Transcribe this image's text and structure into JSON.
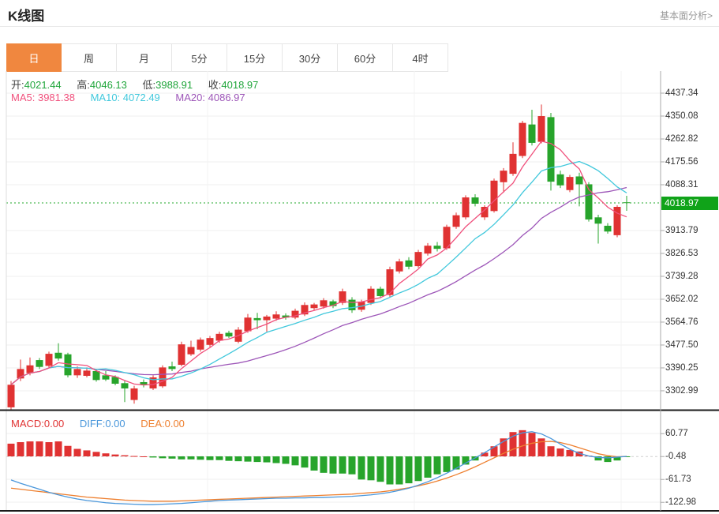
{
  "header": {
    "title": "K线图",
    "link": "基本面分析>"
  },
  "tabs": {
    "items": [
      {
        "label": "日",
        "active": true
      },
      {
        "label": "周",
        "active": false
      },
      {
        "label": "月",
        "active": false
      },
      {
        "label": "5分",
        "active": false
      },
      {
        "label": "15分",
        "active": false
      },
      {
        "label": "30分",
        "active": false
      },
      {
        "label": "60分",
        "active": false
      },
      {
        "label": "4时",
        "active": false
      }
    ]
  },
  "main_chart": {
    "legend": {
      "open_label": "开:",
      "open": "4021.44",
      "high_label": "高:",
      "high": "4046.13",
      "low_label": "低:",
      "low": "3988.91",
      "close_label": "收:",
      "close": "4018.97"
    },
    "ma_legend": {
      "ma5_label": "MA5:",
      "ma5": "3981.38",
      "ma10_label": "MA10:",
      "ma10": "4072.49",
      "ma20_label": "MA20:",
      "ma20": "4086.97"
    },
    "current_price": "4018.97"
  },
  "macd_pane": {
    "legend": {
      "macd_label": "MACD:",
      "macd": "0.00",
      "diff_label": "DIFF:",
      "diff": "0.00",
      "dea_label": "DEA:",
      "dea": "0.00"
    }
  },
  "colors": {
    "up": "#e03232",
    "down": "#27a42b",
    "ma5": "#f0507c",
    "ma10": "#41c8dc",
    "ma20": "#9d56b8",
    "diff": "#4a97db",
    "dea": "#ee8030",
    "tab_accent": "#f0873f",
    "price_tag_bg": "#10a319",
    "value_green": "#21a63c",
    "grid": "#efefef",
    "axis": "#aaaaaa",
    "dark_border": "#1a1a1a",
    "dotted_price": "#22a82b"
  },
  "chart_data": [
    {
      "type": "candlestick",
      "title": "K线图",
      "interval": "日",
      "legend_values": {
        "open": 4021.44,
        "high": 4046.13,
        "low": 3988.91,
        "close": 4018.97,
        "MA5": 3981.38,
        "MA10": 4072.49,
        "MA20": 4086.97
      },
      "current_price": 4018.97,
      "y_ticks": [
        4437.34,
        4350.08,
        4262.82,
        4175.56,
        4088.31,
        3913.79,
        3826.53,
        3739.28,
        3652.02,
        3564.76,
        3477.5,
        3390.25,
        3302.99
      ],
      "ylim": [
        3230,
        4525
      ],
      "grid": true,
      "series_note": "ohlc = [open,high,low,close]; red=up green=down; MA5/MA10/MA20 overlays computed as rolling mean of closes",
      "ohlc": [
        [
          3240,
          3340,
          3232,
          3326
        ],
        [
          3350,
          3422,
          3340,
          3386
        ],
        [
          3370,
          3430,
          3362,
          3400
        ],
        [
          3420,
          3428,
          3386,
          3394
        ],
        [
          3398,
          3452,
          3390,
          3444
        ],
        [
          3448,
          3484,
          3418,
          3426
        ],
        [
          3442,
          3448,
          3354,
          3362
        ],
        [
          3362,
          3396,
          3352,
          3386
        ],
        [
          3360,
          3392,
          3354,
          3380
        ],
        [
          3378,
          3386,
          3338,
          3344
        ],
        [
          3362,
          3378,
          3340,
          3346
        ],
        [
          3356,
          3362,
          3324,
          3330
        ],
        [
          3332,
          3340,
          3260,
          3312
        ],
        [
          3268,
          3322,
          3254,
          3312
        ],
        [
          3336,
          3346,
          3316,
          3326
        ],
        [
          3312,
          3362,
          3306,
          3354
        ],
        [
          3320,
          3400,
          3314,
          3392
        ],
        [
          3396,
          3414,
          3378,
          3386
        ],
        [
          3402,
          3490,
          3396,
          3480
        ],
        [
          3442,
          3494,
          3436,
          3470
        ],
        [
          3460,
          3506,
          3452,
          3498
        ],
        [
          3478,
          3512,
          3470,
          3504
        ],
        [
          3494,
          3528,
          3486,
          3520
        ],
        [
          3524,
          3532,
          3504,
          3510
        ],
        [
          3490,
          3546,
          3484,
          3536
        ],
        [
          3530,
          3596,
          3524,
          3582
        ],
        [
          3580,
          3600,
          3538,
          3572
        ],
        [
          3572,
          3592,
          3528,
          3586
        ],
        [
          3578,
          3606,
          3570,
          3594
        ],
        [
          3590,
          3598,
          3574,
          3582
        ],
        [
          3582,
          3616,
          3576,
          3608
        ],
        [
          3594,
          3640,
          3588,
          3630
        ],
        [
          3618,
          3638,
          3610,
          3632
        ],
        [
          3624,
          3656,
          3616,
          3648
        ],
        [
          3644,
          3650,
          3618,
          3626
        ],
        [
          3638,
          3692,
          3630,
          3682
        ],
        [
          3650,
          3660,
          3600,
          3610
        ],
        [
          3612,
          3650,
          3604,
          3642
        ],
        [
          3638,
          3702,
          3630,
          3692
        ],
        [
          3692,
          3700,
          3656,
          3664
        ],
        [
          3668,
          3776,
          3660,
          3766
        ],
        [
          3758,
          3806,
          3750,
          3796
        ],
        [
          3800,
          3812,
          3766,
          3776
        ],
        [
          3778,
          3840,
          3772,
          3832
        ],
        [
          3826,
          3866,
          3818,
          3856
        ],
        [
          3856,
          3870,
          3834,
          3844
        ],
        [
          3846,
          3936,
          3840,
          3928
        ],
        [
          3928,
          3982,
          3920,
          3972
        ],
        [
          3964,
          4048,
          3956,
          4040
        ],
        [
          4040,
          4052,
          4006,
          4016
        ],
        [
          3964,
          4010,
          3954,
          4004
        ],
        [
          3988,
          4112,
          3982,
          4104
        ],
        [
          4098,
          4152,
          4058,
          4142
        ],
        [
          4130,
          4250,
          4122,
          4206
        ],
        [
          4198,
          4332,
          4190,
          4324
        ],
        [
          4318,
          4374,
          4238,
          4248
        ],
        [
          4252,
          4394,
          4246,
          4350
        ],
        [
          4346,
          4362,
          4066,
          4100
        ],
        [
          4128,
          4142,
          4076,
          4086
        ],
        [
          4068,
          4126,
          4060,
          4118
        ],
        [
          4120,
          4134,
          4006,
          4090
        ],
        [
          4090,
          4098,
          3948,
          3956
        ],
        [
          3964,
          3974,
          3864,
          3940
        ],
        [
          3932,
          3942,
          3902,
          3910
        ],
        [
          3896,
          4010,
          3888,
          4004
        ],
        [
          4021.44,
          4046.13,
          3988.91,
          4018.97
        ]
      ]
    },
    {
      "type": "bar",
      "title": "MACD",
      "legend_values": {
        "MACD": 0.0,
        "DIFF": 0.0,
        "DEA": 0.0
      },
      "y_ticks": [
        60.77,
        -0.48,
        -61.73,
        -122.98
      ],
      "ylim": [
        -145,
        85
      ],
      "grid": true,
      "histogram": [
        34,
        38,
        40,
        40,
        38,
        40,
        28,
        20,
        16,
        12,
        8,
        5,
        3,
        1,
        0,
        -3,
        -5,
        -6,
        -8,
        -8,
        -9,
        -10,
        -10,
        -12,
        -13,
        -14,
        -15,
        -16,
        -18,
        -20,
        -24,
        -30,
        -38,
        -44,
        -46,
        -46,
        -48,
        -62,
        -64,
        -68,
        -75,
        -75,
        -72,
        -66,
        -57,
        -48,
        -42,
        -35,
        -22,
        -11,
        10,
        27,
        48,
        65,
        70,
        63,
        48,
        27,
        21,
        17,
        13,
        2,
        -11,
        -15,
        -11,
        -2
      ],
      "diff_line": [
        -63,
        -72,
        -80,
        -88,
        -96,
        -103,
        -109,
        -114,
        -118,
        -121,
        -124,
        -126,
        -127,
        -128,
        -129,
        -129,
        -128,
        -127,
        -126,
        -124,
        -122,
        -120,
        -118,
        -117,
        -116,
        -115,
        -114,
        -113,
        -112,
        -112,
        -111,
        -111,
        -110,
        -110,
        -109,
        -108,
        -107,
        -105,
        -103,
        -100,
        -96,
        -91,
        -85,
        -77,
        -68,
        -57,
        -45,
        -32,
        -18,
        -4,
        10,
        25,
        40,
        54,
        63,
        66,
        60,
        48,
        33,
        19,
        8,
        1,
        -3,
        -4,
        -2,
        0
      ],
      "dea_line": [
        -85,
        -88,
        -91,
        -94,
        -97,
        -100,
        -103,
        -106,
        -109,
        -111,
        -113,
        -115,
        -117,
        -118,
        -119,
        -120,
        -120,
        -120,
        -119,
        -118,
        -117,
        -116,
        -115,
        -114,
        -113,
        -112,
        -111,
        -110,
        -109,
        -108,
        -107,
        -106,
        -105,
        -104,
        -103,
        -102,
        -101,
        -99,
        -97,
        -95,
        -92,
        -88,
        -84,
        -79,
        -73,
        -66,
        -58,
        -49,
        -39,
        -28,
        -16,
        -4,
        8,
        19,
        28,
        35,
        39,
        40,
        37,
        31,
        23,
        15,
        7,
        2,
        -1,
        0
      ]
    }
  ]
}
